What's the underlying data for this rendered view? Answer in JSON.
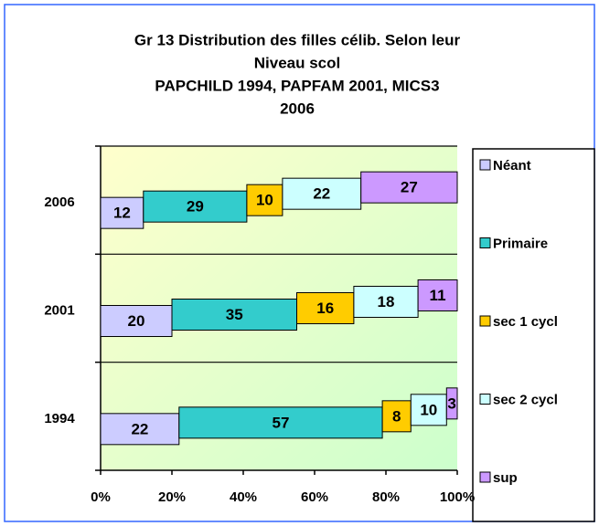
{
  "chart_data": {
    "type": "stacked_bar_horizontal",
    "title": [
      "Gr 13 Distribution des filles célib. Selon leur",
      "Niveau scol",
      "PAPCHILD 1994, PAPFAM 2001, MICS3",
      "2006"
    ],
    "categories": [
      "1994",
      "2001",
      "2006"
    ],
    "series": [
      {
        "name": "Néant",
        "color": "#ccccff",
        "values": [
          22,
          20,
          12
        ]
      },
      {
        "name": "Primaire",
        "color": "#33cccc",
        "values": [
          57,
          35,
          29
        ]
      },
      {
        "name": "sec 1 cycl",
        "color": "#ffcc00",
        "values": [
          8,
          16,
          10
        ]
      },
      {
        "name": "sec 2 cycl",
        "color": "#ccffff",
        "values": [
          10,
          18,
          22
        ]
      },
      {
        "name": "sup",
        "color": "#cc99ff",
        "values": [
          3,
          11,
          27
        ]
      }
    ],
    "xlim": [
      0,
      100
    ],
    "xticks": [
      {
        "value": 0,
        "label": "0%"
      },
      {
        "value": 20,
        "label": "20%"
      },
      {
        "value": 40,
        "label": "40%"
      },
      {
        "value": 60,
        "label": "60%"
      },
      {
        "value": 80,
        "label": "80%"
      },
      {
        "value": 100,
        "label": "100%"
      }
    ],
    "legend": "right"
  }
}
